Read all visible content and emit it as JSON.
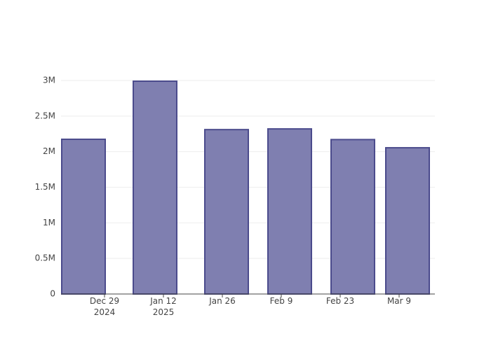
{
  "chart_data": {
    "type": "bar",
    "x": [
      "2024-12-24",
      "2025-01-10",
      "2025-01-27",
      "2025-02-11",
      "2025-02-26",
      "2025-03-11"
    ],
    "values": [
      2174000,
      2990000,
      2310000,
      2320000,
      2170000,
      2055000
    ],
    "color": "#7f7fb0",
    "edge_color": "#4b4b8c",
    "xlim": [
      "2024-12-18T16:00",
      "2025-03-17T12:00"
    ],
    "xticks": [
      {
        "value": "2024-12-29",
        "label": "Dec 29\n2024"
      },
      {
        "value": "2025-01-12",
        "label": "Jan 12\n2025"
      },
      {
        "value": "2025-01-26",
        "label": "Jan 26"
      },
      {
        "value": "2025-02-09",
        "label": "Feb 9"
      },
      {
        "value": "2025-02-23",
        "label": "Feb 23"
      },
      {
        "value": "2025-03-09",
        "label": "Mar 9"
      }
    ],
    "ylim": [
      0,
      3000000
    ],
    "yticks": [
      0,
      {
        "value": 500000,
        "label": "0.5M"
      },
      {
        "value": 1000000,
        "label": "1M"
      },
      {
        "value": 1500000,
        "label": "1.5M"
      },
      {
        "value": 2000000,
        "label": "2M"
      },
      {
        "value": 2500000,
        "label": "2.5M"
      },
      {
        "value": 3000000,
        "label": "3M"
      }
    ],
    "grid": true
  }
}
